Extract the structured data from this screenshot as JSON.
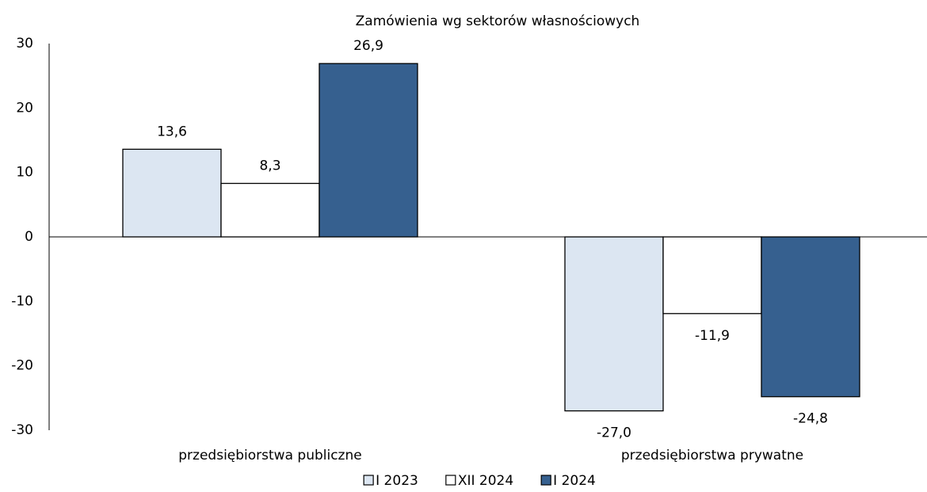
{
  "chart_data": {
    "type": "bar",
    "title": "Zamówienia wg sektorów własnościowych",
    "categories": [
      "przedsiębiorstwa publiczne",
      "przedsiębiorstwa prywatne"
    ],
    "series": [
      {
        "name": "I 2023",
        "color": "#dce6f2",
        "values": [
          13.6,
          -27.0
        ],
        "value_labels": [
          "13,6",
          "-27,0"
        ]
      },
      {
        "name": "XII 2024",
        "color": "#ffffff",
        "values": [
          8.3,
          -11.9
        ],
        "value_labels": [
          "8,3",
          "-11,9"
        ]
      },
      {
        "name": "I 2024",
        "color": "#36608f",
        "values": [
          26.9,
          -24.8
        ],
        "value_labels": [
          "26,9",
          "-24,8"
        ]
      }
    ],
    "ylim": [
      -30,
      30
    ],
    "yticks": [
      -30,
      -20,
      -10,
      0,
      10,
      20,
      30
    ],
    "legend": "bottom"
  }
}
